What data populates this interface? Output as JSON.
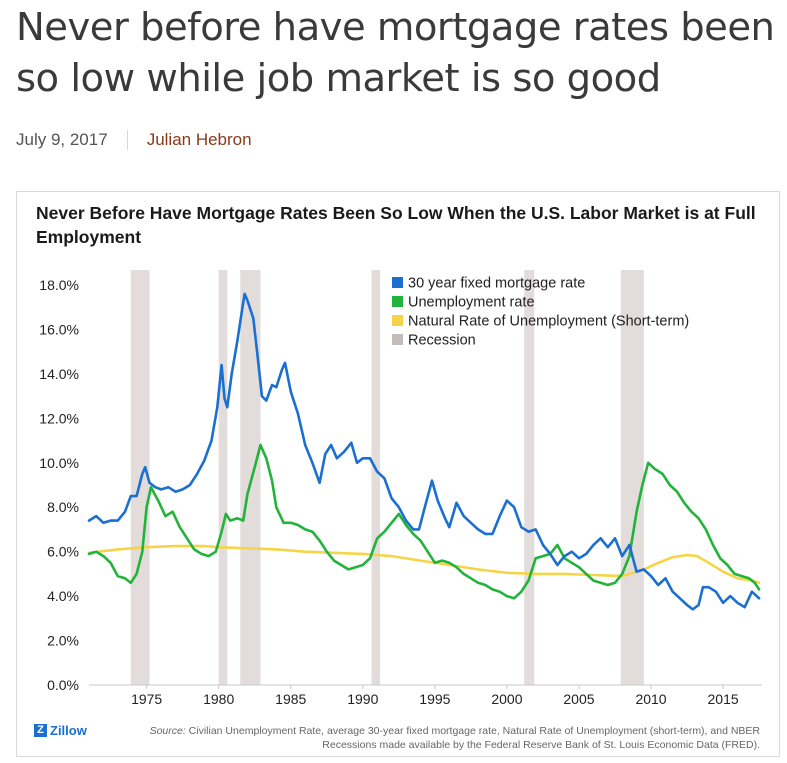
{
  "article": {
    "headline": "Never before have mortgage rates been so low while job market is so good",
    "date": "July 9, 2017",
    "author": "Julian Hebron"
  },
  "footer": {
    "logo_text": "Zillow",
    "source_label": "Source:",
    "source_text": "Civilian Unemployment Rate, average 30-year fixed mortgage rate, Natural Rate of Unemployment (short-term), and NBER Recessions made available by the Federal Reserve Bank of St. Louis Economic Data (FRED)."
  },
  "colors": {
    "mortgage": "#1a6fd1",
    "unemployment": "#22b33a",
    "natural": "#f5d547",
    "recession": "#e2dcdb"
  },
  "chart_data": {
    "type": "line",
    "title": "Never Before Have Mortgage Rates Been So Low When the U.S. Labor Market is at Full Employment",
    "xlabel": "",
    "ylabel": "",
    "xlim": [
      1971,
      2017.7
    ],
    "ylim": [
      0,
      18
    ],
    "x_ticks": [
      1975,
      1980,
      1985,
      1990,
      1995,
      2000,
      2005,
      2010,
      2015
    ],
    "y_ticks": [
      "0.0%",
      "2.0%",
      "4.0%",
      "6.0%",
      "8.0%",
      "10.0%",
      "12.0%",
      "14.0%",
      "16.0%",
      "18.0%"
    ],
    "grid": false,
    "legend_position": "top-right",
    "recessions": [
      [
        1973.9,
        1975.2
      ],
      [
        1980.0,
        1980.6
      ],
      [
        1981.5,
        1982.9
      ],
      [
        1990.6,
        1991.2
      ],
      [
        2001.2,
        2001.9
      ],
      [
        2007.9,
        2009.5
      ]
    ],
    "recession_label": "Recession",
    "series": [
      {
        "name": "30 year fixed mortgage rate",
        "color_key": "mortgage",
        "points": [
          [
            1971.0,
            7.4
          ],
          [
            1971.5,
            7.6
          ],
          [
            1972.0,
            7.3
          ],
          [
            1972.5,
            7.4
          ],
          [
            1973.0,
            7.4
          ],
          [
            1973.5,
            7.8
          ],
          [
            1973.9,
            8.5
          ],
          [
            1974.3,
            8.5
          ],
          [
            1974.7,
            9.5
          ],
          [
            1974.9,
            9.8
          ],
          [
            1975.2,
            9.1
          ],
          [
            1975.6,
            8.9
          ],
          [
            1976.0,
            8.8
          ],
          [
            1976.5,
            8.9
          ],
          [
            1977.0,
            8.7
          ],
          [
            1977.5,
            8.8
          ],
          [
            1978.0,
            9.0
          ],
          [
            1978.5,
            9.5
          ],
          [
            1979.0,
            10.1
          ],
          [
            1979.5,
            11.0
          ],
          [
            1979.9,
            12.5
          ],
          [
            1980.2,
            14.4
          ],
          [
            1980.4,
            12.9
          ],
          [
            1980.6,
            12.5
          ],
          [
            1980.9,
            14.0
          ],
          [
            1981.3,
            15.5
          ],
          [
            1981.6,
            16.8
          ],
          [
            1981.8,
            17.6
          ],
          [
            1982.0,
            17.3
          ],
          [
            1982.4,
            16.5
          ],
          [
            1982.7,
            14.8
          ],
          [
            1983.0,
            13.0
          ],
          [
            1983.3,
            12.8
          ],
          [
            1983.7,
            13.5
          ],
          [
            1984.0,
            13.4
          ],
          [
            1984.4,
            14.2
          ],
          [
            1984.6,
            14.5
          ],
          [
            1985.0,
            13.2
          ],
          [
            1985.5,
            12.2
          ],
          [
            1986.0,
            10.8
          ],
          [
            1986.5,
            10.0
          ],
          [
            1987.0,
            9.1
          ],
          [
            1987.4,
            10.4
          ],
          [
            1987.8,
            10.8
          ],
          [
            1988.2,
            10.2
          ],
          [
            1988.7,
            10.5
          ],
          [
            1989.2,
            10.9
          ],
          [
            1989.6,
            10.0
          ],
          [
            1990.0,
            10.2
          ],
          [
            1990.5,
            10.2
          ],
          [
            1991.0,
            9.6
          ],
          [
            1991.5,
            9.3
          ],
          [
            1992.0,
            8.4
          ],
          [
            1992.5,
            8.0
          ],
          [
            1993.0,
            7.4
          ],
          [
            1993.5,
            7.0
          ],
          [
            1993.9,
            7.0
          ],
          [
            1994.3,
            8.0
          ],
          [
            1994.8,
            9.2
          ],
          [
            1995.2,
            8.3
          ],
          [
            1995.7,
            7.5
          ],
          [
            1996.0,
            7.1
          ],
          [
            1996.5,
            8.2
          ],
          [
            1997.0,
            7.6
          ],
          [
            1997.5,
            7.3
          ],
          [
            1998.0,
            7.0
          ],
          [
            1998.5,
            6.8
          ],
          [
            1999.0,
            6.8
          ],
          [
            1999.5,
            7.6
          ],
          [
            2000.0,
            8.3
          ],
          [
            2000.5,
            8.0
          ],
          [
            2001.0,
            7.1
          ],
          [
            2001.5,
            6.9
          ],
          [
            2002.0,
            7.0
          ],
          [
            2002.5,
            6.3
          ],
          [
            2003.0,
            5.9
          ],
          [
            2003.5,
            5.4
          ],
          [
            2004.0,
            5.8
          ],
          [
            2004.5,
            6.0
          ],
          [
            2005.0,
            5.7
          ],
          [
            2005.5,
            5.9
          ],
          [
            2006.0,
            6.3
          ],
          [
            2006.5,
            6.6
          ],
          [
            2007.0,
            6.2
          ],
          [
            2007.5,
            6.6
          ],
          [
            2008.0,
            5.8
          ],
          [
            2008.5,
            6.3
          ],
          [
            2009.0,
            5.1
          ],
          [
            2009.5,
            5.2
          ],
          [
            2010.0,
            4.9
          ],
          [
            2010.5,
            4.5
          ],
          [
            2011.0,
            4.8
          ],
          [
            2011.5,
            4.2
          ],
          [
            2012.0,
            3.9
          ],
          [
            2012.5,
            3.6
          ],
          [
            2012.9,
            3.4
          ],
          [
            2013.3,
            3.6
          ],
          [
            2013.6,
            4.4
          ],
          [
            2014.0,
            4.4
          ],
          [
            2014.5,
            4.2
          ],
          [
            2015.0,
            3.7
          ],
          [
            2015.5,
            4.0
          ],
          [
            2016.0,
            3.7
          ],
          [
            2016.5,
            3.5
          ],
          [
            2017.0,
            4.2
          ],
          [
            2017.5,
            3.9
          ]
        ]
      },
      {
        "name": "Unemployment rate",
        "color_key": "unemployment",
        "points": [
          [
            1971.0,
            5.9
          ],
          [
            1971.5,
            6.0
          ],
          [
            1972.0,
            5.8
          ],
          [
            1972.5,
            5.5
          ],
          [
            1973.0,
            4.9
          ],
          [
            1973.5,
            4.8
          ],
          [
            1973.9,
            4.6
          ],
          [
            1974.3,
            5.0
          ],
          [
            1974.7,
            6.0
          ],
          [
            1975.0,
            8.0
          ],
          [
            1975.3,
            8.9
          ],
          [
            1975.8,
            8.3
          ],
          [
            1976.3,
            7.6
          ],
          [
            1976.8,
            7.8
          ],
          [
            1977.3,
            7.1
          ],
          [
            1977.8,
            6.6
          ],
          [
            1978.3,
            6.1
          ],
          [
            1978.8,
            5.9
          ],
          [
            1979.3,
            5.8
          ],
          [
            1979.8,
            6.0
          ],
          [
            1980.2,
            6.9
          ],
          [
            1980.5,
            7.7
          ],
          [
            1980.8,
            7.4
          ],
          [
            1981.3,
            7.5
          ],
          [
            1981.7,
            7.4
          ],
          [
            1982.0,
            8.6
          ],
          [
            1982.5,
            9.8
          ],
          [
            1982.9,
            10.8
          ],
          [
            1983.3,
            10.2
          ],
          [
            1983.7,
            9.2
          ],
          [
            1984.0,
            8.0
          ],
          [
            1984.5,
            7.3
          ],
          [
            1985.0,
            7.3
          ],
          [
            1985.5,
            7.2
          ],
          [
            1986.0,
            7.0
          ],
          [
            1986.5,
            6.9
          ],
          [
            1987.0,
            6.5
          ],
          [
            1987.5,
            6.0
          ],
          [
            1988.0,
            5.6
          ],
          [
            1988.5,
            5.4
          ],
          [
            1989.0,
            5.2
          ],
          [
            1989.5,
            5.3
          ],
          [
            1990.0,
            5.4
          ],
          [
            1990.5,
            5.7
          ],
          [
            1991.0,
            6.6
          ],
          [
            1991.5,
            6.9
          ],
          [
            1992.0,
            7.3
          ],
          [
            1992.5,
            7.7
          ],
          [
            1993.0,
            7.2
          ],
          [
            1993.5,
            6.8
          ],
          [
            1994.0,
            6.5
          ],
          [
            1994.5,
            6.0
          ],
          [
            1995.0,
            5.5
          ],
          [
            1995.5,
            5.6
          ],
          [
            1996.0,
            5.5
          ],
          [
            1996.5,
            5.3
          ],
          [
            1997.0,
            5.0
          ],
          [
            1997.5,
            4.8
          ],
          [
            1998.0,
            4.6
          ],
          [
            1998.5,
            4.5
          ],
          [
            1999.0,
            4.3
          ],
          [
            1999.5,
            4.2
          ],
          [
            2000.0,
            4.0
          ],
          [
            2000.5,
            3.9
          ],
          [
            2001.0,
            4.2
          ],
          [
            2001.5,
            4.7
          ],
          [
            2002.0,
            5.7
          ],
          [
            2002.5,
            5.8
          ],
          [
            2003.0,
            5.9
          ],
          [
            2003.5,
            6.3
          ],
          [
            2004.0,
            5.7
          ],
          [
            2004.5,
            5.5
          ],
          [
            2005.0,
            5.3
          ],
          [
            2005.5,
            5.0
          ],
          [
            2006.0,
            4.7
          ],
          [
            2006.5,
            4.6
          ],
          [
            2007.0,
            4.5
          ],
          [
            2007.5,
            4.6
          ],
          [
            2008.0,
            5.0
          ],
          [
            2008.5,
            5.8
          ],
          [
            2009.0,
            7.8
          ],
          [
            2009.4,
            9.0
          ],
          [
            2009.8,
            10.0
          ],
          [
            2010.3,
            9.7
          ],
          [
            2010.8,
            9.5
          ],
          [
            2011.3,
            9.0
          ],
          [
            2011.8,
            8.7
          ],
          [
            2012.3,
            8.2
          ],
          [
            2012.8,
            7.8
          ],
          [
            2013.3,
            7.5
          ],
          [
            2013.8,
            7.0
          ],
          [
            2014.3,
            6.3
          ],
          [
            2014.8,
            5.7
          ],
          [
            2015.3,
            5.4
          ],
          [
            2015.8,
            5.0
          ],
          [
            2016.3,
            4.9
          ],
          [
            2016.8,
            4.8
          ],
          [
            2017.2,
            4.6
          ],
          [
            2017.5,
            4.3
          ]
        ]
      },
      {
        "name": "Natural Rate of Unemployment (Short-term)",
        "color_key": "natural",
        "points": [
          [
            1971.0,
            5.95
          ],
          [
            1973.0,
            6.1
          ],
          [
            1975.0,
            6.2
          ],
          [
            1977.0,
            6.25
          ],
          [
            1979.0,
            6.25
          ],
          [
            1980.0,
            6.2
          ],
          [
            1982.0,
            6.15
          ],
          [
            1984.0,
            6.1
          ],
          [
            1986.0,
            6.0
          ],
          [
            1988.0,
            5.95
          ],
          [
            1990.0,
            5.9
          ],
          [
            1992.0,
            5.8
          ],
          [
            1994.0,
            5.6
          ],
          [
            1996.0,
            5.4
          ],
          [
            1998.0,
            5.2
          ],
          [
            2000.0,
            5.05
          ],
          [
            2002.0,
            5.0
          ],
          [
            2004.0,
            5.0
          ],
          [
            2006.0,
            4.95
          ],
          [
            2008.0,
            4.9
          ],
          [
            2009.5,
            5.2
          ],
          [
            2010.5,
            5.5
          ],
          [
            2011.5,
            5.75
          ],
          [
            2012.5,
            5.85
          ],
          [
            2013.2,
            5.8
          ],
          [
            2014.0,
            5.5
          ],
          [
            2015.0,
            5.1
          ],
          [
            2016.0,
            4.8
          ],
          [
            2017.0,
            4.7
          ],
          [
            2017.5,
            4.6
          ]
        ]
      }
    ]
  }
}
